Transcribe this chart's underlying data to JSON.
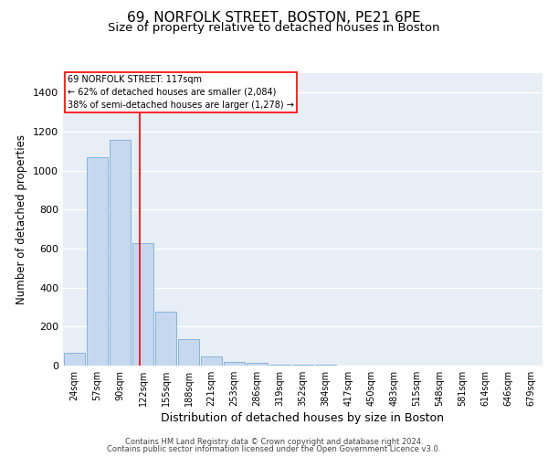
{
  "title1": "69, NORFOLK STREET, BOSTON, PE21 6PE",
  "title2": "Size of property relative to detached houses in Boston",
  "xlabel": "Distribution of detached houses by size in Boston",
  "ylabel": "Number of detached properties",
  "footer1": "Contains HM Land Registry data © Crown copyright and database right 2024.",
  "footer2": "Contains public sector information licensed under the Open Government Licence v3.0.",
  "annotation_line1": "69 NORFOLK STREET: 117sqm",
  "annotation_line2": "← 62% of detached houses are smaller (2,084)",
  "annotation_line3": "38% of semi-detached houses are larger (1,278) →",
  "bar_labels": [
    "24sqm",
    "57sqm",
    "90sqm",
    "122sqm",
    "155sqm",
    "188sqm",
    "221sqm",
    "253sqm",
    "286sqm",
    "319sqm",
    "352sqm",
    "384sqm",
    "417sqm",
    "450sqm",
    "483sqm",
    "515sqm",
    "548sqm",
    "581sqm",
    "614sqm",
    "646sqm",
    "679sqm"
  ],
  "bar_values": [
    65,
    1070,
    1160,
    630,
    275,
    135,
    45,
    20,
    15,
    5,
    5,
    5,
    0,
    0,
    0,
    0,
    0,
    0,
    0,
    0,
    0
  ],
  "bar_color": "#c5d8ef",
  "bar_edge_color": "#7aadd4",
  "ylim": [
    0,
    1500
  ],
  "yticks": [
    0,
    200,
    400,
    600,
    800,
    1000,
    1200,
    1400
  ],
  "background_color": "#e8eef6",
  "grid_color": "#ffffff",
  "title1_fontsize": 11,
  "title2_fontsize": 9.5,
  "ylabel_fontsize": 8.5,
  "xlabel_fontsize": 9,
  "tick_fontsize": 8,
  "xtick_fontsize": 7,
  "annotation_fontsize": 7,
  "footer_fontsize": 6
}
